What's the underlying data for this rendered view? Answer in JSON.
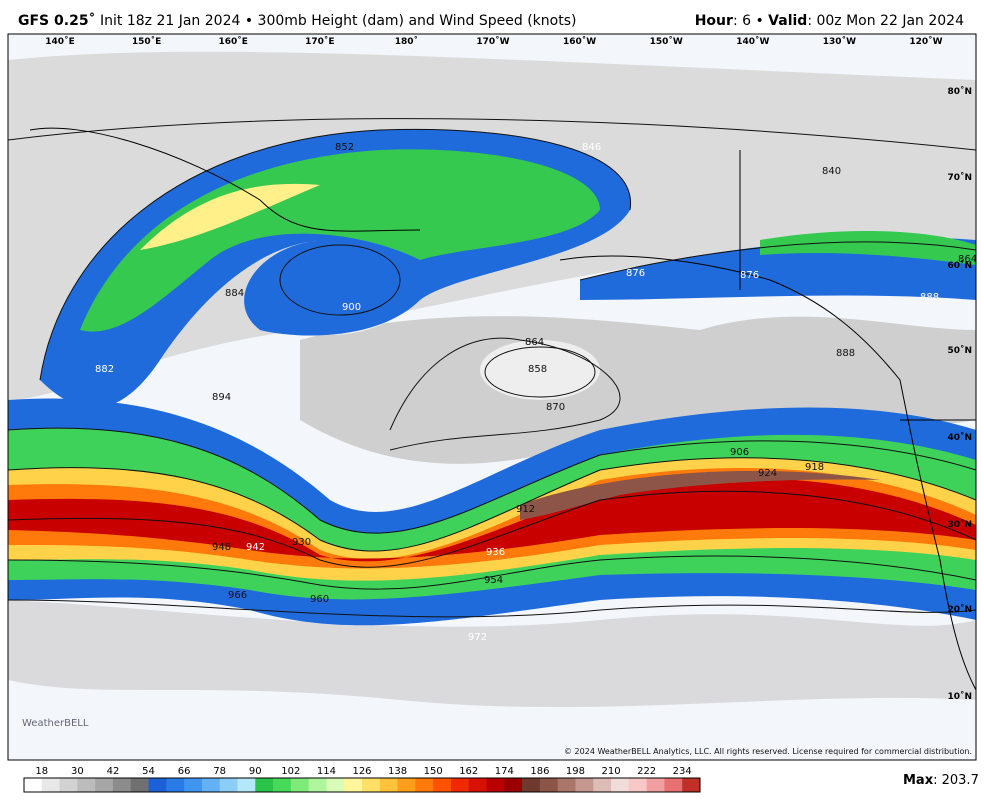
{
  "header": {
    "model": "GFS 0.25˚",
    "description": "Init 18z 21 Jan 2024 • 300mb Height (dam) and Wind Speed (knots)",
    "hour_label": "Hour",
    "hour_value": ": 6 • ",
    "valid_label": "Valid",
    "valid_value": ": 00z Mon 22 Jan 2024"
  },
  "map": {
    "longitude_labels": [
      "140˚E",
      "150˚E",
      "160˚E",
      "170˚E",
      "180˚",
      "170˚W",
      "160˚W",
      "150˚W",
      "140˚W",
      "130˚W",
      "120˚W"
    ],
    "latitude_labels": [
      "80˚N",
      "70˚N",
      "60˚N",
      "50˚N",
      "40˚N",
      "30˚N",
      "20˚N",
      "10˚N"
    ],
    "contour_labels": [
      "852",
      "846",
      "840",
      "864",
      "876",
      "876",
      "888",
      "884",
      "900",
      "882",
      "894",
      "864",
      "858",
      "870",
      "888",
      "906",
      "924",
      "918",
      "912",
      "930",
      "948",
      "942",
      "936",
      "954",
      "966",
      "960",
      "972"
    ],
    "copyright": "© 2024 WeatherBELL Analytics, LLC. All rights reserved. License required for commercial distribution.",
    "logo": "WeatherBELL"
  },
  "colorbar": {
    "labels": [
      "18",
      "30",
      "42",
      "54",
      "66",
      "78",
      "90",
      "102",
      "114",
      "126",
      "138",
      "150",
      "162",
      "174",
      "186",
      "198",
      "210",
      "222",
      "234"
    ],
    "colors": [
      "#ffffff",
      "#e8e8e8",
      "#d2d2d2",
      "#bcbcbc",
      "#a6a6a6",
      "#8c8c8c",
      "#707070",
      "#1c5fd6",
      "#2a7be6",
      "#3f95f0",
      "#62b1f5",
      "#8ccdf7",
      "#b6e6fa",
      "#2bc44a",
      "#48d95a",
      "#7eea7a",
      "#aef59c",
      "#d9fbb8",
      "#fff59a",
      "#ffe066",
      "#ffc23a",
      "#ff9e1a",
      "#ff7a0a",
      "#ff5200",
      "#f02a00",
      "#d81000",
      "#bb0000",
      "#9a0000",
      "#6e3a30",
      "#8c5548",
      "#a8766a",
      "#c4988e",
      "#dcbcb4",
      "#f0dcd8",
      "#f8c8c8",
      "#f0a0a0",
      "#e87070",
      "#c03028"
    ],
    "max_label": "Max",
    "max_value": ": 203.7"
  }
}
